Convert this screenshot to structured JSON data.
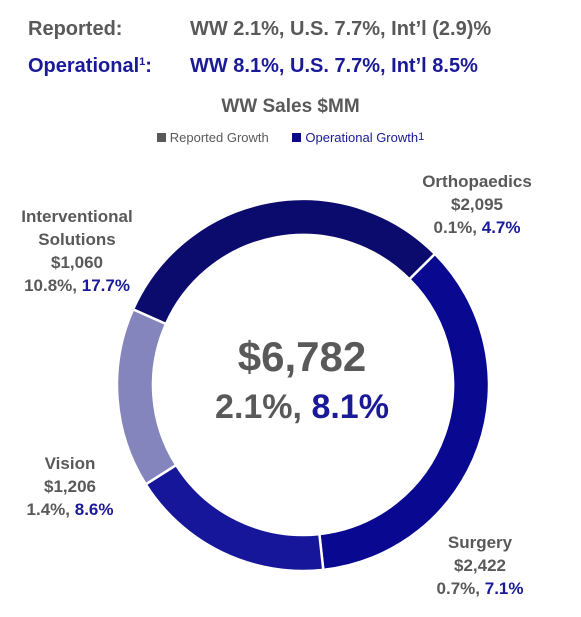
{
  "header": {
    "reported_label": "Reported:",
    "reported_value": "WW 2.1%, U.S. 7.7%, Int’l (2.9)%",
    "operational_label": "Operational",
    "operational_sup": "1",
    "operational_colon": ":",
    "operational_value": "WW 8.1%, U.S. 7.7%, Int’l 8.5%"
  },
  "chart_data": {
    "type": "pie",
    "title": "WW Sales $MM",
    "legend": {
      "placement": "top",
      "reported": "Reported Growth",
      "operational": "Operational Growth",
      "operational_sup": "1"
    },
    "center": {
      "total": "$6,782",
      "reported": "2.1%,",
      "operational": "8.1%"
    },
    "slices": [
      {
        "name": "Orthopaedics",
        "value": 2095,
        "value_label": "$2,095",
        "reported": "0.1%,",
        "operational": "4.7%"
      },
      {
        "name": "Surgery",
        "value": 2422,
        "value_label": "$2,422",
        "reported": "0.7%,",
        "operational": "7.1%"
      },
      {
        "name": "Vision",
        "value": 1206,
        "value_label": "$1,206",
        "reported": "1.4%,",
        "operational": "8.6%"
      },
      {
        "name": "Interventional Solutions",
        "value": 1060,
        "value_label": "$1,060",
        "reported": "10.8%,",
        "operational": "17.7%"
      }
    ],
    "slice_colors": [
      "#0b0b6e",
      "#080890",
      "#16169a",
      "#8585bd"
    ],
    "reported_color": "#595959",
    "operational_color": "#1a1a99"
  }
}
